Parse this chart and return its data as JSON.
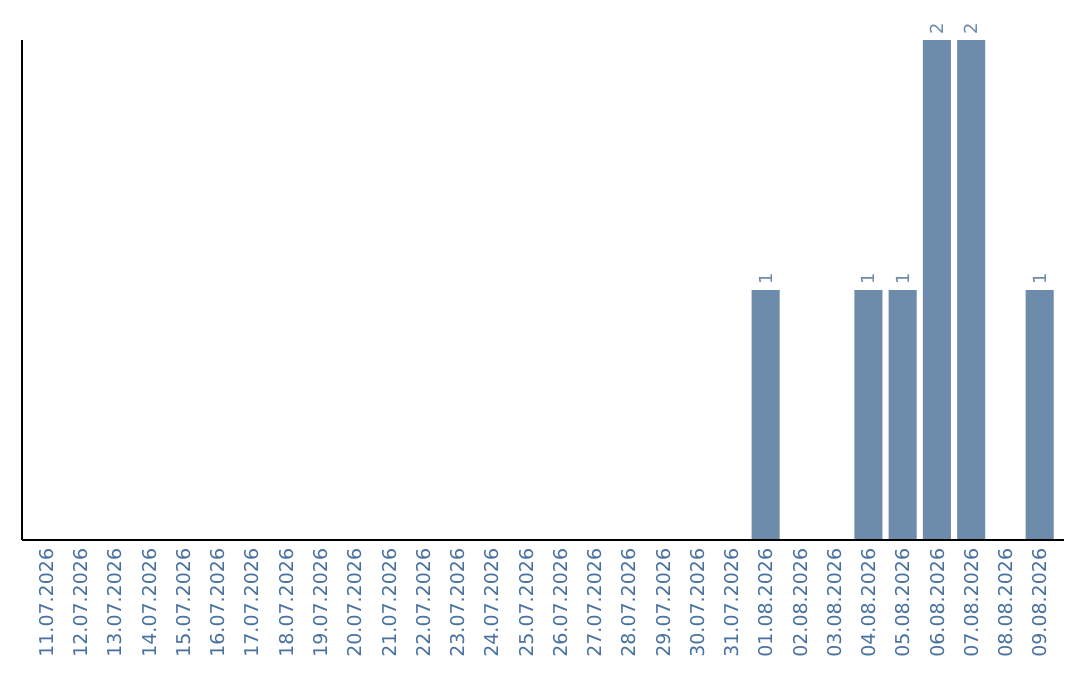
{
  "chart_data": {
    "type": "bar",
    "categories": [
      "11.07.2026",
      "12.07.2026",
      "13.07.2026",
      "14.07.2026",
      "15.07.2026",
      "16.07.2026",
      "17.07.2026",
      "18.07.2026",
      "19.07.2026",
      "20.07.2026",
      "21.07.2026",
      "22.07.2026",
      "23.07.2026",
      "24.07.2026",
      "25.07.2026",
      "26.07.2026",
      "27.07.2026",
      "28.07.2026",
      "29.07.2026",
      "30.07.2026",
      "31.07.2026",
      "01.08.2026",
      "02.08.2026",
      "03.08.2026",
      "04.08.2026",
      "05.08.2026",
      "06.08.2026",
      "07.08.2026",
      "08.08.2026",
      "09.08.2026"
    ],
    "values": [
      null,
      null,
      null,
      null,
      null,
      null,
      null,
      null,
      null,
      null,
      null,
      null,
      null,
      null,
      null,
      null,
      null,
      null,
      null,
      null,
      null,
      1,
      null,
      null,
      1,
      1,
      2,
      2,
      null,
      1
    ],
    "data_labels": true,
    "color": "#6d8cab",
    "ylim": [
      0,
      2
    ],
    "tick_labels": "x"
  }
}
